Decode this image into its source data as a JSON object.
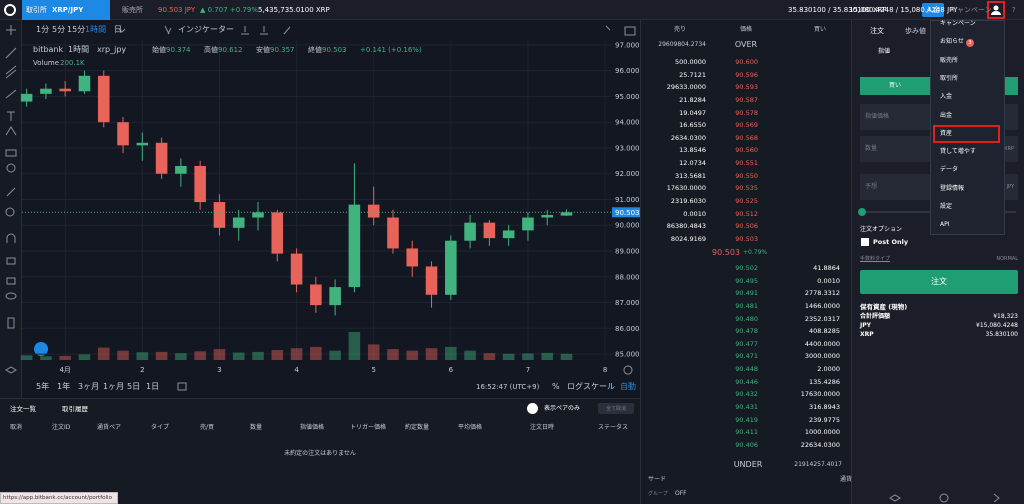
{
  "header": {
    "exchange_tab": "取引所",
    "pair": "XRP/JPY",
    "sales_tab": "販売所",
    "price": "90.503 JPY",
    "change": "▲ 0.707 +0.79%",
    "volume": "5,435,735.0100 XRP",
    "xrp_balance": "35.830100 / 35.830100 XRP",
    "jpy_balance": "15,080.4248 / 15,080.4248 JPY",
    "deposit": "入金",
    "campaign": "キャンペーン",
    "help": "?"
  },
  "chart_toolbar": {
    "intervals": [
      "1分",
      "5分",
      "15分",
      "1時間",
      "日"
    ],
    "active_interval": 3,
    "indicator": "インジケーター"
  },
  "chart_data": {
    "type": "candlestick",
    "title": "bitbank",
    "interval": "1時間",
    "symbol": "xrp_jpy",
    "legend": [
      [
        "始値",
        90.374
      ],
      [
        "高値",
        90.612
      ],
      [
        "安値",
        90.357
      ],
      [
        "終値",
        90.503
      ]
    ],
    "legend_change": "+0.141 (+0.16%)",
    "volume_label": "Volume",
    "volume_value": "200.1K",
    "x": [
      0.5,
      0.75,
      1,
      1.25,
      1.5,
      1.75,
      2,
      2.25,
      2.5,
      2.75,
      3,
      3.25,
      3.5,
      3.75,
      4,
      4.25,
      4.5,
      4.75,
      5,
      5.25,
      5.5,
      5.75,
      6,
      6.25,
      6.5,
      6.75,
      7,
      7.25,
      7.5
    ],
    "open": [
      94.8,
      95.1,
      95.3,
      95.2,
      95.8,
      94.0,
      93.1,
      93.2,
      92.0,
      92.3,
      90.9,
      89.9,
      90.3,
      90.5,
      88.9,
      87.7,
      86.9,
      87.6,
      90.8,
      90.3,
      89.1,
      88.4,
      87.3,
      89.4,
      90.1,
      89.5,
      89.8,
      90.3,
      90.374
    ],
    "high": [
      95.3,
      95.5,
      95.6,
      96.0,
      96.0,
      94.2,
      93.6,
      93.4,
      92.6,
      92.5,
      91.2,
      90.6,
      90.9,
      90.6,
      89.1,
      88.0,
      87.9,
      92.4,
      91.5,
      90.6,
      89.4,
      88.6,
      89.6,
      90.4,
      90.2,
      90.0,
      90.5,
      90.6,
      90.612
    ],
    "low": [
      94.6,
      94.9,
      95.0,
      95.1,
      93.8,
      92.8,
      92.5,
      91.8,
      91.5,
      90.6,
      89.6,
      89.4,
      89.8,
      88.6,
      87.4,
      86.6,
      86.5,
      87.4,
      90.0,
      88.9,
      88.0,
      86.8,
      87.1,
      89.1,
      89.2,
      89.2,
      89.4,
      90.0,
      90.357
    ],
    "close": [
      95.1,
      95.3,
      95.2,
      95.8,
      94.0,
      93.1,
      93.2,
      92.0,
      92.3,
      90.9,
      89.9,
      90.3,
      90.5,
      88.9,
      87.7,
      86.9,
      87.6,
      90.8,
      90.3,
      89.1,
      88.4,
      87.3,
      89.4,
      90.1,
      89.5,
      89.8,
      90.3,
      90.4,
      90.503
    ],
    "volume": [
      150,
      120,
      130,
      180,
      400,
      300,
      250,
      260,
      220,
      280,
      350,
      240,
      260,
      320,
      380,
      420,
      300,
      900,
      500,
      350,
      300,
      380,
      420,
      300,
      220,
      200,
      210,
      230,
      200
    ],
    "up_color": "#41b37f",
    "down_color": "#e8635a",
    "xlim": [
      0.44,
      8.09
    ],
    "xticks": [
      {
        "value": 1,
        "label": "4月"
      },
      2,
      3,
      4,
      5,
      6,
      7,
      8
    ],
    "ylim": [
      84.77,
      97.19
    ],
    "yticks": [
      {
        "value": 85,
        "label": "85.000"
      },
      {
        "value": 86,
        "label": "86.000"
      },
      {
        "value": 87,
        "label": "87.000"
      },
      {
        "value": 88,
        "label": "88.000"
      },
      {
        "value": 89,
        "label": "89.000"
      },
      {
        "value": 90,
        "label": "90.000"
      },
      {
        "value": 91,
        "label": "91.000"
      },
      {
        "value": 92,
        "label": "92.000"
      },
      {
        "value": 93,
        "label": "93.000"
      },
      {
        "value": 94,
        "label": "94.000"
      },
      {
        "value": 95,
        "label": "95.000"
      },
      {
        "value": 96,
        "label": "96.000"
      },
      {
        "value": 97,
        "label": "97.000"
      }
    ],
    "last_price": 90.503,
    "last_price_label": "90.503",
    "grid": true,
    "log_scale": false,
    "range_buttons": [
      "5年",
      "1年",
      "3ヶ月",
      "1ヶ月",
      "5日",
      "1日"
    ],
    "clock": "16:52:47 (UTC+9)",
    "percent": "%",
    "log_label": "ログスケール",
    "auto": "自動"
  },
  "orderbook": {
    "headers": [
      "売り",
      "価格",
      "買い"
    ],
    "over_amount": "29609804.2734",
    "over": "OVER",
    "asks": [
      [
        "500.0000",
        "90.600"
      ],
      [
        "25.7121",
        "90.596"
      ],
      [
        "29633.0000",
        "90.593"
      ],
      [
        "21.8284",
        "90.587"
      ],
      [
        "19.0497",
        "90.578"
      ],
      [
        "16.6550",
        "90.569"
      ],
      [
        "2634.0300",
        "90.568"
      ],
      [
        "13.8546",
        "90.560"
      ],
      [
        "12.0734",
        "90.551"
      ],
      [
        "313.5681",
        "90.550"
      ],
      [
        "17630.0000",
        "90.535"
      ],
      [
        "2319.6030",
        "90.525"
      ],
      [
        "0.0010",
        "90.512"
      ],
      [
        "86380.4843",
        "90.506"
      ],
      [
        "8024.9169",
        "90.503"
      ]
    ],
    "mid_price": "90.503",
    "mid_change": "+0.79%",
    "bids": [
      [
        "90.502",
        "41.8864"
      ],
      [
        "90.495",
        "0.0010"
      ],
      [
        "90.491",
        "2778.3312"
      ],
      [
        "90.481",
        "1466.0000"
      ],
      [
        "90.480",
        "2352.0317"
      ],
      [
        "90.478",
        "408.8285"
      ],
      [
        "90.477",
        "4400.0000"
      ],
      [
        "90.471",
        "3000.0000"
      ],
      [
        "90.448",
        "2.0000"
      ],
      [
        "90.446",
        "135.4286"
      ],
      [
        "90.432",
        "17630.0000"
      ],
      [
        "90.431",
        "316.8943"
      ],
      [
        "90.419",
        "239.9775"
      ],
      [
        "90.411",
        "1000.0000"
      ],
      [
        "90.406",
        "22634.0300"
      ]
    ],
    "under": "UNDER",
    "under_amount": "21914257.4017",
    "footer": "サード",
    "group": "グループ",
    "group_value": "OFF",
    "currency": "通貨"
  },
  "order_panel": {
    "tabs": [
      "注文",
      "歩み値"
    ],
    "order_type": "指値",
    "buy": "買い",
    "price_placeholder": "指値価格",
    "amount_placeholder": "数量",
    "amount_unit": "XRP",
    "estimate_placeholder": "予想",
    "estimate_unit": "JPY",
    "options": "注文オプション",
    "post_only": "Post Only",
    "fee_type": "手数料タイプ",
    "fee_value": "NORMAL",
    "submit": "注文",
    "assets_title": "保有資産 (現物)",
    "assets": [
      [
        "合計評価額",
        "¥18,323"
      ],
      [
        "JPY",
        "¥15,080.4248"
      ],
      [
        "XRP",
        "35.830100"
      ]
    ]
  },
  "menu": {
    "items": [
      "キャンペーン",
      "お知らせ",
      "販売所",
      "取引所",
      "入金",
      "出金",
      "資産",
      "貸して増やす",
      "データ",
      "登録情報",
      "設定",
      "API"
    ],
    "badge": "3",
    "highlight": 6
  },
  "orders": {
    "tabs": [
      "注文一覧",
      "取引履歴"
    ],
    "toggle": "表示ペアのみ",
    "cancel_all": "全て取消",
    "columns": [
      "取消",
      "注文ID",
      "通貨ペア",
      "タイプ",
      "売/買",
      "数量",
      "指値価格",
      "トリガー価格",
      "約定数量",
      "平均価格",
      "注文日時",
      "ステータス"
    ],
    "empty": "未約定の注文はありません"
  },
  "status_url": "https://app.bitbank.cc/account/portfolio"
}
